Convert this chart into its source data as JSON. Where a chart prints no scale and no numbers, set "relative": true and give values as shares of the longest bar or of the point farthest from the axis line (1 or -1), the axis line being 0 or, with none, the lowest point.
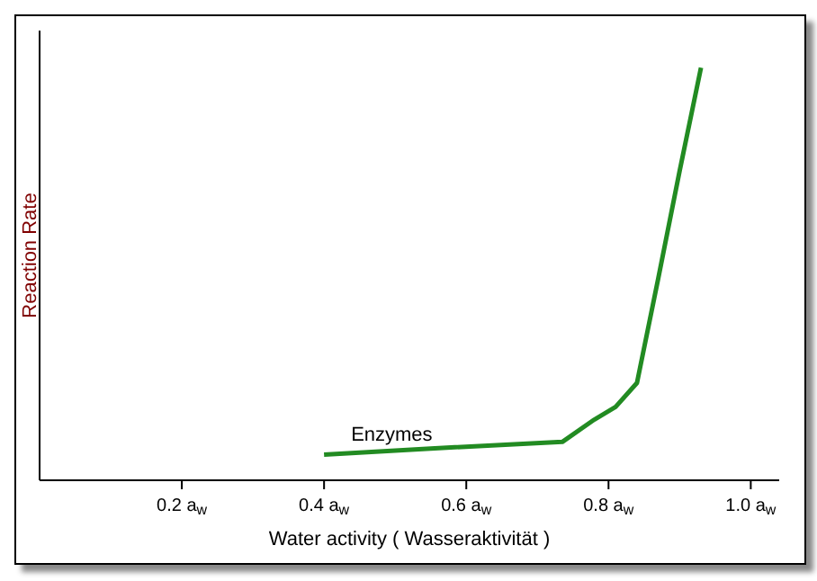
{
  "chart_data": {
    "type": "line",
    "relative": true,
    "xlabel": "Water activity  ( Wasseraktivität )",
    "ylabel": "Reaction Rate",
    "x": [
      0.4,
      0.55,
      0.735,
      0.78,
      0.81,
      0.84,
      0.87,
      0.9,
      0.93
    ],
    "series": [
      {
        "name": "Enzymes",
        "color": "#228b22",
        "values": [
          0.062,
          0.077,
          0.093,
          0.147,
          0.178,
          0.236,
          0.49,
          0.75,
          1
        ]
      }
    ],
    "xlim": [
      0,
      1.04
    ],
    "xticks": [
      {
        "value": 0.2,
        "label": "0.2 a$_{w}$"
      },
      {
        "value": 0.4,
        "label": "0.4 a$_{w}$"
      },
      {
        "value": 0.6,
        "label": "0.6 a$_{w}$"
      },
      {
        "value": 0.8,
        "label": "0.8 a$_{w}$"
      },
      {
        "value": 1.0,
        "label": "1.0 a$_{w}$"
      }
    ],
    "grid": false,
    "legend": false,
    "marker": "none",
    "line_style": "solid"
  }
}
